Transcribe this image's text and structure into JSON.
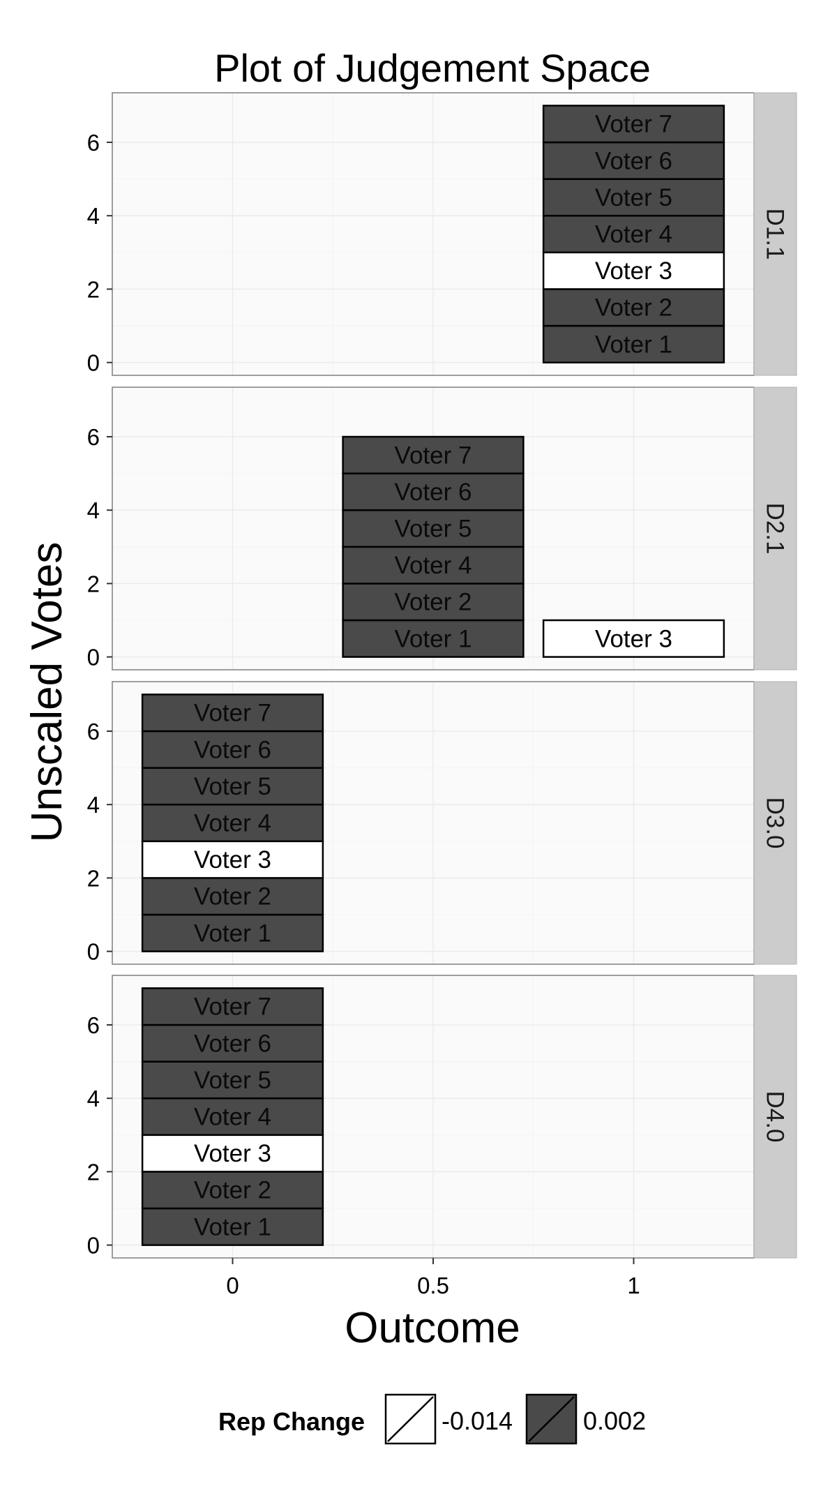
{
  "chart_data": {
    "type": "bar",
    "title": "Plot of Judgement Space",
    "xlabel": "Outcome",
    "ylabel": "Unscaled Votes",
    "x_ticks": [
      "0",
      "0.5",
      "1"
    ],
    "x_tick_values": [
      0,
      0.5,
      1
    ],
    "y_ticks": [
      "0",
      "2",
      "4",
      "6"
    ],
    "y_tick_values": [
      0,
      2,
      4,
      6
    ],
    "xlim": [
      -0.3,
      1.3
    ],
    "ylim": [
      -0.35,
      7.35
    ],
    "bar_width": 0.45,
    "grid": true,
    "legend_position": "bottom",
    "facets": [
      {
        "label": "D1.1",
        "bars": [
          {
            "x": 1,
            "y0": 0,
            "y1": 1,
            "label": "Voter 1",
            "rep_change": "0.002"
          },
          {
            "x": 1,
            "y0": 1,
            "y1": 2,
            "label": "Voter 2",
            "rep_change": "0.002"
          },
          {
            "x": 1,
            "y0": 2,
            "y1": 3,
            "label": "Voter 3",
            "rep_change": "-0.014"
          },
          {
            "x": 1,
            "y0": 3,
            "y1": 4,
            "label": "Voter 4",
            "rep_change": "0.002"
          },
          {
            "x": 1,
            "y0": 4,
            "y1": 5,
            "label": "Voter 5",
            "rep_change": "0.002"
          },
          {
            "x": 1,
            "y0": 5,
            "y1": 6,
            "label": "Voter 6",
            "rep_change": "0.002"
          },
          {
            "x": 1,
            "y0": 6,
            "y1": 7,
            "label": "Voter 7",
            "rep_change": "0.002"
          }
        ]
      },
      {
        "label": "D2.1",
        "bars": [
          {
            "x": 0.5,
            "y0": 0,
            "y1": 1,
            "label": "Voter 1",
            "rep_change": "0.002"
          },
          {
            "x": 0.5,
            "y0": 1,
            "y1": 2,
            "label": "Voter 2",
            "rep_change": "0.002"
          },
          {
            "x": 0.5,
            "y0": 2,
            "y1": 3,
            "label": "Voter 4",
            "rep_change": "0.002"
          },
          {
            "x": 0.5,
            "y0": 3,
            "y1": 4,
            "label": "Voter 5",
            "rep_change": "0.002"
          },
          {
            "x": 0.5,
            "y0": 4,
            "y1": 5,
            "label": "Voter 6",
            "rep_change": "0.002"
          },
          {
            "x": 0.5,
            "y0": 5,
            "y1": 6,
            "label": "Voter 7",
            "rep_change": "0.002"
          },
          {
            "x": 1,
            "y0": 0,
            "y1": 1,
            "label": "Voter 3",
            "rep_change": "-0.014"
          }
        ]
      },
      {
        "label": "D3.0",
        "bars": [
          {
            "x": 0,
            "y0": 0,
            "y1": 1,
            "label": "Voter 1",
            "rep_change": "0.002"
          },
          {
            "x": 0,
            "y0": 1,
            "y1": 2,
            "label": "Voter 2",
            "rep_change": "0.002"
          },
          {
            "x": 0,
            "y0": 2,
            "y1": 3,
            "label": "Voter 3",
            "rep_change": "-0.014"
          },
          {
            "x": 0,
            "y0": 3,
            "y1": 4,
            "label": "Voter 4",
            "rep_change": "0.002"
          },
          {
            "x": 0,
            "y0": 4,
            "y1": 5,
            "label": "Voter 5",
            "rep_change": "0.002"
          },
          {
            "x": 0,
            "y0": 5,
            "y1": 6,
            "label": "Voter 6",
            "rep_change": "0.002"
          },
          {
            "x": 0,
            "y0": 6,
            "y1": 7,
            "label": "Voter 7",
            "rep_change": "0.002"
          }
        ]
      },
      {
        "label": "D4.0",
        "bars": [
          {
            "x": 0,
            "y0": 0,
            "y1": 1,
            "label": "Voter 1",
            "rep_change": "0.002"
          },
          {
            "x": 0,
            "y0": 1,
            "y1": 2,
            "label": "Voter 2",
            "rep_change": "0.002"
          },
          {
            "x": 0,
            "y0": 2,
            "y1": 3,
            "label": "Voter 3",
            "rep_change": "-0.014"
          },
          {
            "x": 0,
            "y0": 3,
            "y1": 4,
            "label": "Voter 4",
            "rep_change": "0.002"
          },
          {
            "x": 0,
            "y0": 4,
            "y1": 5,
            "label": "Voter 5",
            "rep_change": "0.002"
          },
          {
            "x": 0,
            "y0": 5,
            "y1": 6,
            "label": "Voter 6",
            "rep_change": "0.002"
          },
          {
            "x": 0,
            "y0": 6,
            "y1": 7,
            "label": "Voter 7",
            "rep_change": "0.002"
          }
        ]
      }
    ],
    "legend": {
      "title": "Rep Change",
      "entries": [
        {
          "label": "-0.014",
          "fill": "#ffffff"
        },
        {
          "label": "0.002",
          "fill": "#4a4a4a"
        }
      ]
    },
    "colors": {
      "panel_background": "#fafafa",
      "grid_major": "#ebebeb",
      "grid_minor": "#f4f4f4",
      "strip_background": "#cccccc",
      "bar_outline": "#000000",
      "dark_fill": "#4a4a4a",
      "light_fill": "#ffffff"
    }
  }
}
